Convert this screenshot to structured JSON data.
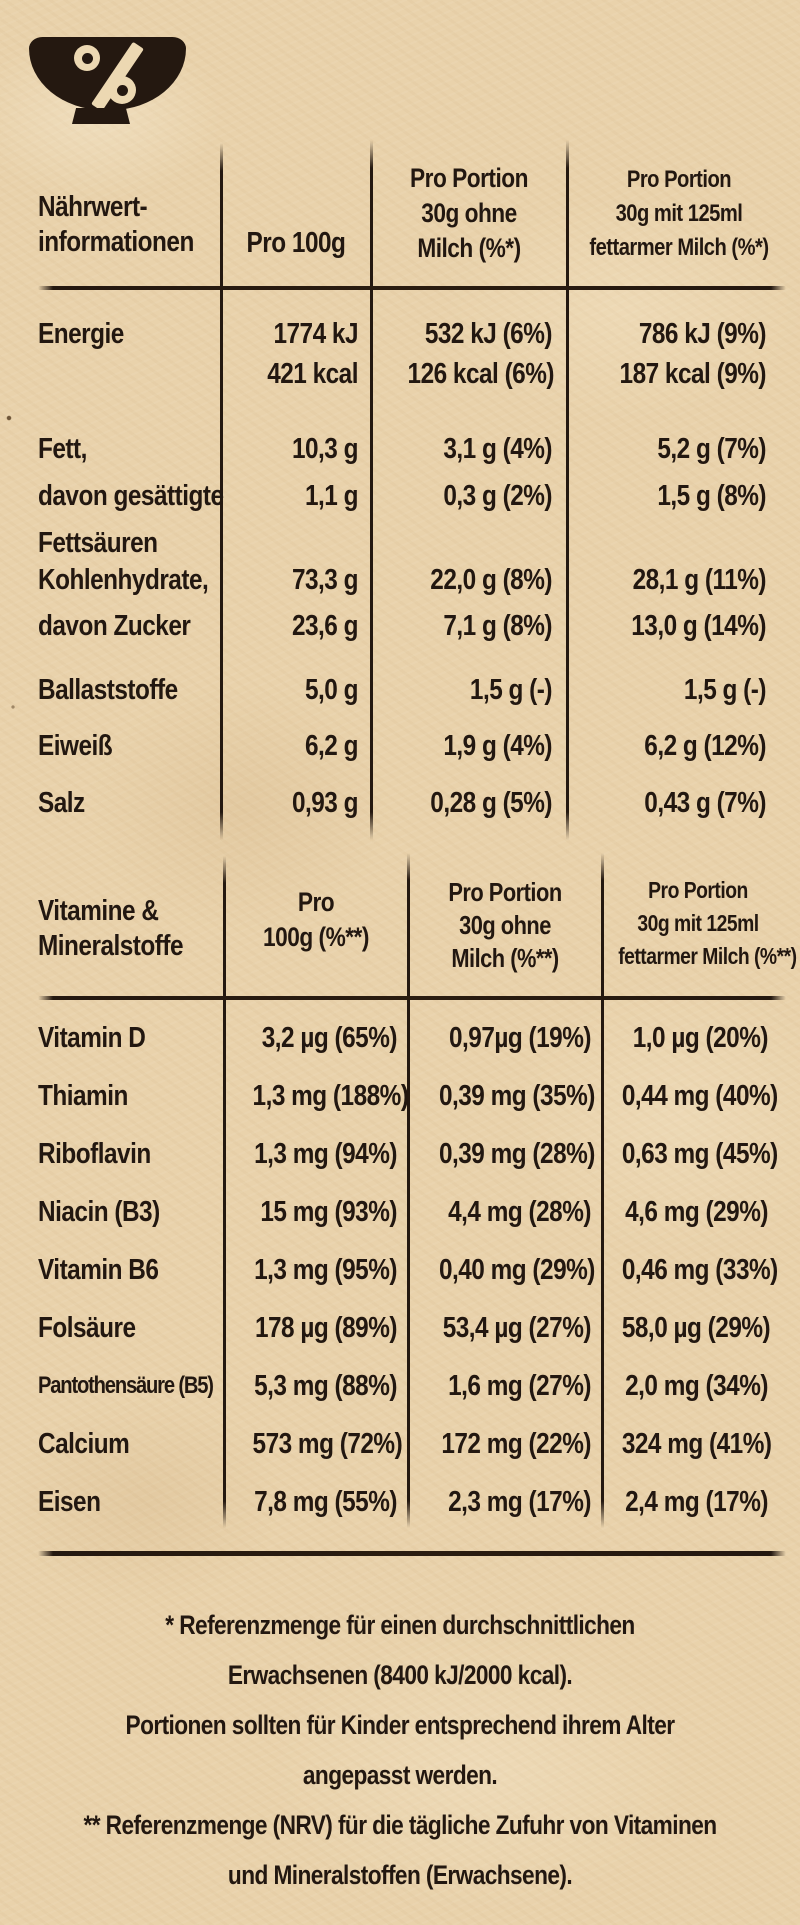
{
  "colors": {
    "paper": "#e9d2ab",
    "ink": "#241810"
  },
  "logo": {
    "icon": "bowl-percent-icon",
    "symbol": "%"
  },
  "nutrition_table": {
    "header": {
      "title_lines": [
        "Nährwert-",
        "informationen"
      ],
      "col1": "Pro 100g",
      "col2_lines": [
        "Pro Portion",
        "30g ohne",
        "Milch (%*)"
      ],
      "col3_lines": [
        "Pro Portion",
        "30g mit 125ml",
        "fettarmer Milch (%*)"
      ]
    },
    "rows": [
      {
        "label_lines": [
          "Energie"
        ],
        "per100": [
          "1774 kJ",
          "421 kcal"
        ],
        "portion": [
          "532 kJ (6%)",
          "126 kcal (6%)"
        ],
        "with_milk": [
          "786 kJ (9%)",
          "187 kcal (9%)"
        ]
      },
      {
        "label_lines": [
          "Fett,",
          "davon gesättigte",
          "Fettsäuren"
        ],
        "per100": [
          "10,3 g",
          "1,1 g"
        ],
        "portion": [
          "3,1 g (4%)",
          "0,3 g (2%)"
        ],
        "with_milk": [
          "5,2 g (7%)",
          "1,5 g (8%)"
        ]
      },
      {
        "label_lines": [
          "Kohlenhydrate,",
          "davon Zucker"
        ],
        "per100": [
          "73,3 g",
          "23,6 g"
        ],
        "portion": [
          "22,0 g (8%)",
          "7,1 g (8%)"
        ],
        "with_milk": [
          "28,1 g (11%)",
          "13,0 g (14%)"
        ]
      },
      {
        "label_lines": [
          "Ballaststoffe"
        ],
        "per100": [
          "5,0 g"
        ],
        "portion": [
          "1,5 g (-)"
        ],
        "with_milk": [
          "1,5 g (-)"
        ]
      },
      {
        "label_lines": [
          "Eiweiß"
        ],
        "per100": [
          "6,2 g"
        ],
        "portion": [
          "1,9 g (4%)"
        ],
        "with_milk": [
          "6,2 g (12%)"
        ]
      },
      {
        "label_lines": [
          "Salz"
        ],
        "per100": [
          "0,93 g"
        ],
        "portion": [
          "0,28 g (5%)"
        ],
        "with_milk": [
          "0,43 g (7%)"
        ]
      }
    ]
  },
  "vitamins_table": {
    "header": {
      "title_lines": [
        "Vitamine &",
        "Mineralstoffe"
      ],
      "col1_lines": [
        "Pro",
        "100g (%**)"
      ],
      "col2_lines": [
        "Pro Portion",
        "30g ohne",
        "Milch (%**)"
      ],
      "col3_lines": [
        "Pro Portion",
        "30g mit 125ml",
        "fettarmer Milch (%**)"
      ]
    },
    "rows": [
      {
        "label": "Vitamin D",
        "per100": "3,2 µg (65%)",
        "portion": "0,97µg (19%)",
        "with_milk": "1,0 µg (20%)"
      },
      {
        "label": "Thiamin",
        "per100": "1,3 mg (188%)",
        "portion": "0,39 mg (35%)",
        "with_milk": "0,44 mg (40%)"
      },
      {
        "label": "Riboflavin",
        "per100": "1,3 mg (94%)",
        "portion": "0,39 mg (28%)",
        "with_milk": "0,63 mg (45%)"
      },
      {
        "label": "Niacin (B3)",
        "per100": "15 mg (93%)",
        "portion": "4,4 mg (28%)",
        "with_milk": "4,6 mg (29%)"
      },
      {
        "label": "Vitamin B6",
        "per100": "1,3 mg (95%)",
        "portion": "0,40 mg (29%)",
        "with_milk": "0,46 mg (33%)"
      },
      {
        "label": "Folsäure",
        "per100": "178 µg (89%)",
        "portion": "53,4 µg (27%)",
        "with_milk": "58,0 µg (29%)"
      },
      {
        "label": "Pantothensäure (B5)",
        "per100": "5,3 mg (88%)",
        "portion": "1,6 mg (27%)",
        "with_milk": "2,0 mg (34%)",
        "tight": true
      },
      {
        "label": "Calcium",
        "per100": "573 mg (72%)",
        "portion": "172 mg (22%)",
        "with_milk": "324 mg (41%)"
      },
      {
        "label": "Eisen",
        "per100": "7,8 mg (55%)",
        "portion": "2,3 mg (17%)",
        "with_milk": "2,4 mg (17%)"
      }
    ]
  },
  "footnotes": {
    "lines": [
      "* Referenzmenge für einen durchschnittlichen",
      "Erwachsenen (8400 kJ/2000 kcal).",
      "Portionen sollten für Kinder entsprechend ihrem Alter",
      "angepasst werden.",
      "** Referenzmenge (NRV) für die tägliche Zufuhr von Vitaminen",
      "und Mineralstoffen (Erwachsene)."
    ]
  }
}
